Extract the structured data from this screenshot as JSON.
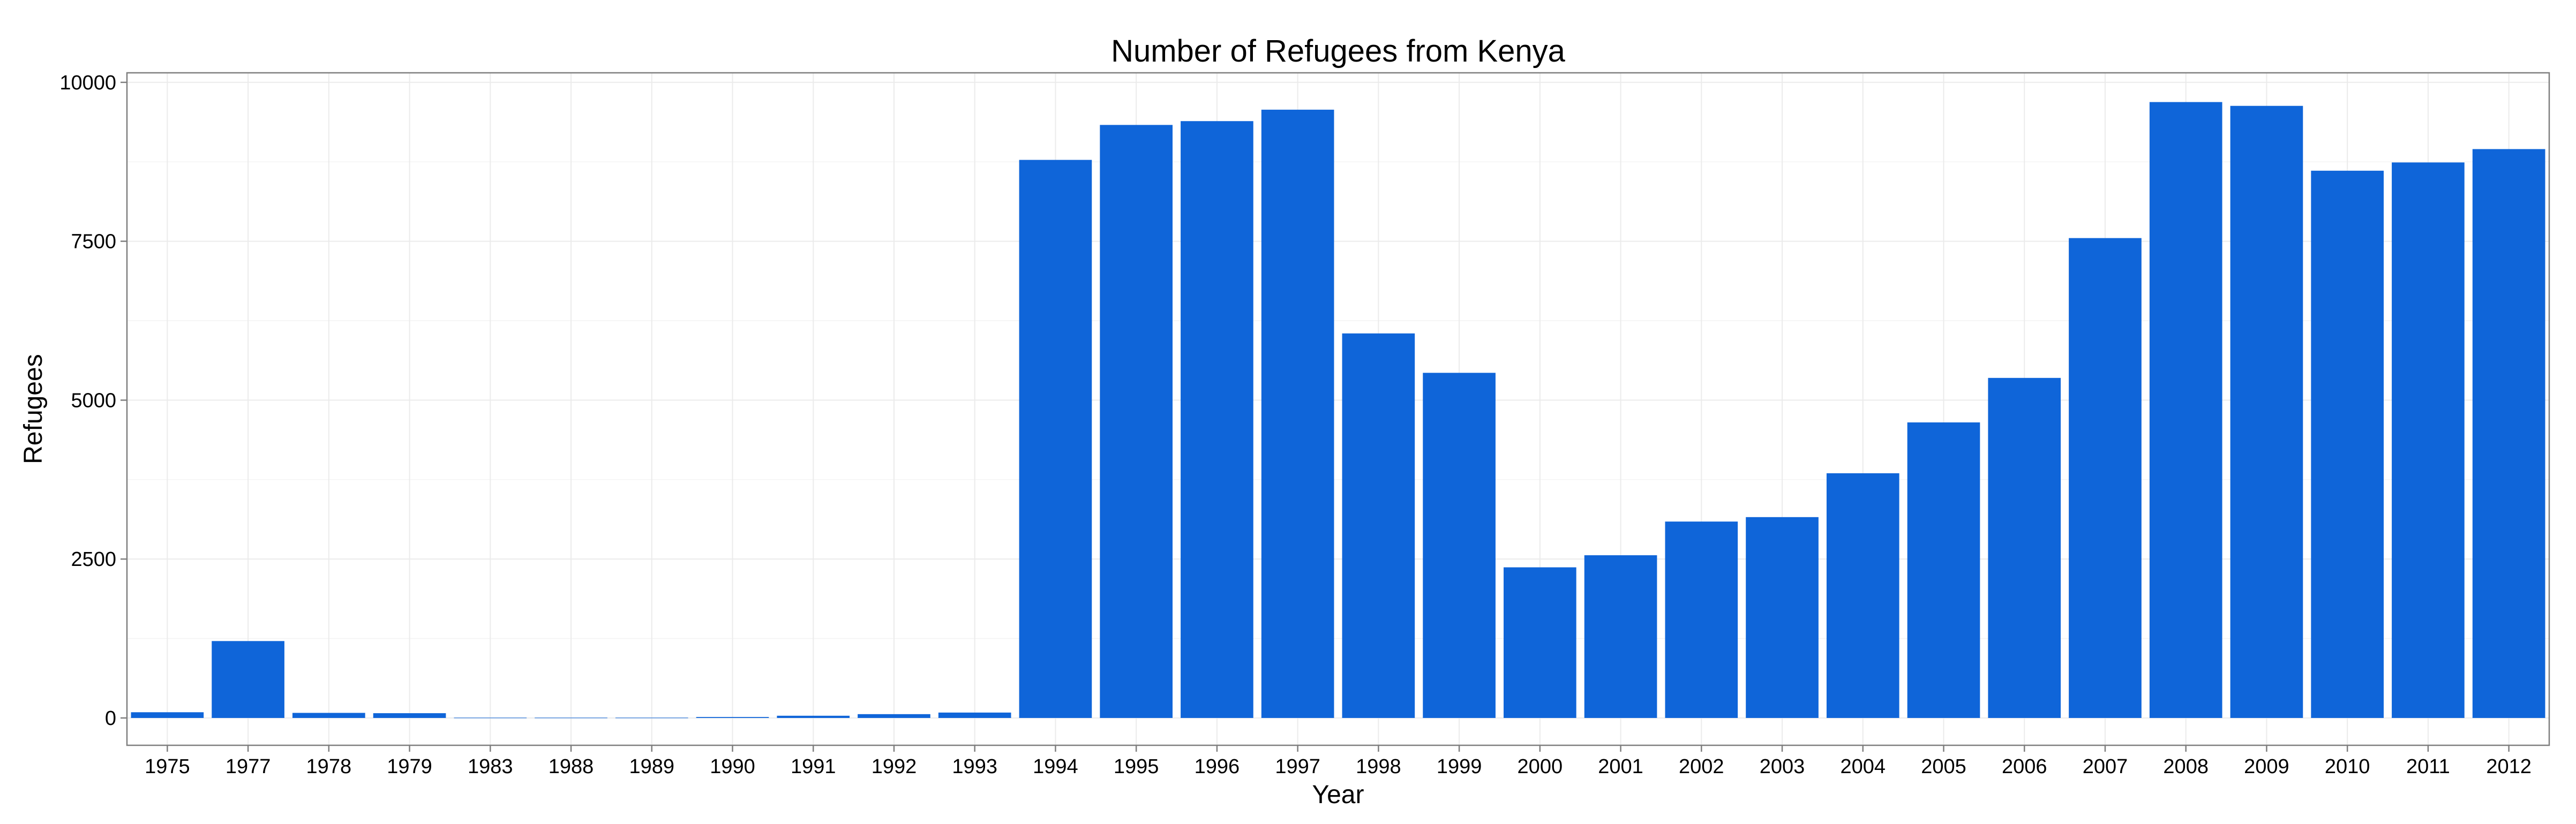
{
  "chart_data": {
    "type": "bar",
    "title": "Number of Refugees from Kenya",
    "xlabel": "Year",
    "ylabel": "Refugees",
    "categories": [
      "1975",
      "1977",
      "1978",
      "1979",
      "1983",
      "1988",
      "1989",
      "1990",
      "1991",
      "1992",
      "1993",
      "1994",
      "1995",
      "1996",
      "1997",
      "1998",
      "1999",
      "2000",
      "2001",
      "2002",
      "2003",
      "2004",
      "2005",
      "2006",
      "2007",
      "2008",
      "2009",
      "2010",
      "2011",
      "2012"
    ],
    "values": [
      90,
      1210,
      80,
      75,
      5,
      5,
      5,
      15,
      35,
      60,
      85,
      8780,
      9330,
      9390,
      9570,
      6050,
      5430,
      2370,
      2560,
      3090,
      3160,
      3850,
      4650,
      5350,
      7550,
      9690,
      9630,
      8610,
      8740,
      8950
    ],
    "yticks": [
      0,
      2500,
      5000,
      7500,
      10000
    ],
    "ylim": [
      -430,
      10150
    ],
    "grid": true,
    "bar_color": "#0f65d9",
    "legend": "none"
  }
}
